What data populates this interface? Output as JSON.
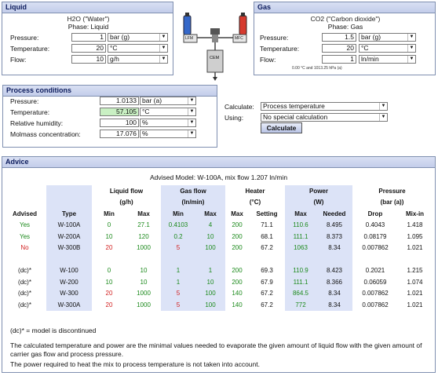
{
  "liquid": {
    "title": "Liquid",
    "substance": "H2O (\"Water\")",
    "phase": "Phase: Liquid",
    "fields": [
      {
        "label": "Pressure:",
        "value": "1",
        "unit": "bar (g)"
      },
      {
        "label": "Temperature:",
        "value": "20",
        "unit": "°C"
      },
      {
        "label": "Flow:",
        "value": "10",
        "unit": "g/h"
      }
    ]
  },
  "gas": {
    "title": "Gas",
    "substance": "CO2 (\"Carbon dioxide\")",
    "phase": "Phase: Gas",
    "fields": [
      {
        "label": "Pressure:",
        "value": "1.5",
        "unit": "bar (g)"
      },
      {
        "label": "Temperature:",
        "value": "20",
        "unit": "°C"
      },
      {
        "label": "Flow:",
        "value": "1",
        "unit": "ln/min"
      }
    ],
    "note": "0.00 °C and 1013.25 hPa (a)"
  },
  "diagram": {
    "lfm": "LFM",
    "mfc": "MFC",
    "cem": "CEM"
  },
  "process": {
    "title": "Process conditions",
    "fields": [
      {
        "label": "Pressure:",
        "value": "1.0133",
        "unit": "bar (a)"
      },
      {
        "label": "Temperature:",
        "value": "57.105",
        "unit": "°C"
      },
      {
        "label": "Relative humidity:",
        "value": "100",
        "unit": "%"
      },
      {
        "label": "Molmass concentration:",
        "value": "17.076",
        "unit": "%"
      }
    ],
    "calculate_label": "Calculate:",
    "calculate_value": "Process temperature",
    "using_label": "Using:",
    "using_value": "No special calculation",
    "calculate_button": "Calculate"
  },
  "advice": {
    "title": "Advice",
    "advised_model": "Advised Model: W-100A, mix flow 1.207 ln/min",
    "group_headers": {
      "liquid": "Liquid flow",
      "liquid_unit": "(g/h)",
      "gas": "Gas flow",
      "gas_unit": "(ln/min)",
      "heater": "Heater",
      "heater_unit": "(°C)",
      "power": "Power",
      "power_unit": "(W)",
      "pressure": "Pressure",
      "pressure_unit": "(bar (a))"
    },
    "columns": [
      "Advised",
      "Type",
      "Min",
      "Max",
      "Min",
      "Max",
      "Max",
      "Setting",
      "Max",
      "Needed",
      "Drop",
      "Mix-in"
    ],
    "rows": [
      {
        "advised": "Yes",
        "status": "yes",
        "type": "W-100A",
        "lmin": "0",
        "lmax": "27.1",
        "gmin": "0.4103",
        "gmax": "4",
        "hmax": "200",
        "hset": "71.1",
        "pmax": "110.6",
        "pneed": "8.495",
        "drop": "0.4043",
        "mixin": "1.418"
      },
      {
        "advised": "Yes",
        "status": "yes",
        "type": "W-200A",
        "lmin": "10",
        "lmax": "120",
        "gmin": "0.2",
        "gmax": "10",
        "hmax": "200",
        "hset": "68.1",
        "pmax": "111.1",
        "pneed": "8.373",
        "drop": "0.08179",
        "mixin": "1.095"
      },
      {
        "advised": "No",
        "status": "no",
        "type": "W-300B",
        "lmin": "20",
        "lmax": "1000",
        "gmin": "5",
        "gmax": "100",
        "hmax": "200",
        "hset": "67.2",
        "pmax": "1063",
        "pneed": "8.34",
        "drop": "0.007862",
        "mixin": "1.021"
      }
    ],
    "dc_rows": [
      {
        "advised": "(dc)*",
        "type": "W-100",
        "lmin": "0",
        "lmax": "10",
        "gmin": "1",
        "gmax": "1",
        "hmax": "200",
        "hset": "69.3",
        "pmax": "110.9",
        "pneed": "8.423",
        "drop": "0.2021",
        "mixin": "1.215"
      },
      {
        "advised": "(dc)*",
        "type": "W-200",
        "lmin": "10",
        "lmax": "10",
        "gmin": "1",
        "gmax": "10",
        "hmax": "200",
        "hset": "67.9",
        "pmax": "111.1",
        "pneed": "8.366",
        "drop": "0.06059",
        "mixin": "1.074"
      },
      {
        "advised": "(dc)*",
        "type": "W-300",
        "lmin": "20",
        "lmax": "1000",
        "gmin": "5",
        "gmax": "100",
        "hmax": "140",
        "hset": "67.2",
        "pmax": "864.5",
        "pneed": "8.34",
        "drop": "0.007862",
        "mixin": "1.021"
      },
      {
        "advised": "(dc)*",
        "type": "W-300A",
        "lmin": "20",
        "lmax": "1000",
        "gmin": "5",
        "gmax": "100",
        "hmax": "140",
        "hset": "67.2",
        "pmax": "772",
        "pneed": "8.34",
        "drop": "0.007862",
        "mixin": "1.021"
      }
    ],
    "footnote": "(dc)* = model is discontinued",
    "note1": "The calculated temperature and power are the minimal values needed to evaporate the given amount of liquid flow with the given amount of carrier gas flow and process pressure.",
    "note2": "The power required to heat the mix to process temperature is not taken into account."
  }
}
